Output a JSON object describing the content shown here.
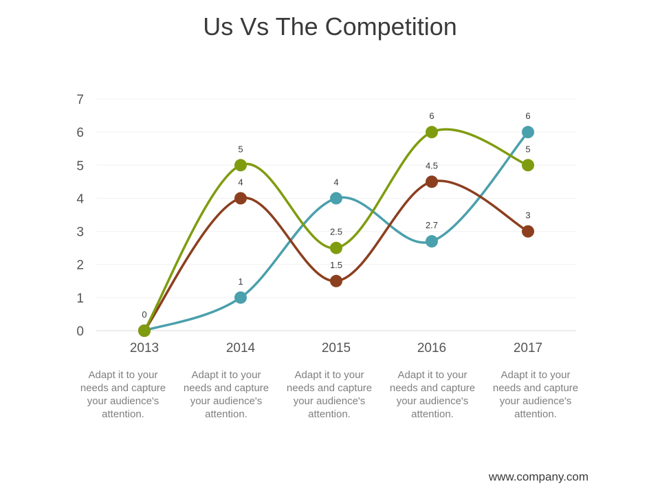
{
  "title": "Us Vs The Competition",
  "footer": "www.company.com",
  "captions": [
    "Adapt it to your needs and capture your audience's attention.",
    "Adapt it to your needs and capture your audience's attention.",
    "Adapt it to your needs and capture your audience's attention.",
    "Adapt it to your needs and capture your audience's attention.",
    "Adapt it to your needs and capture your audience's attention."
  ],
  "chart_data": {
    "type": "line",
    "title": "Us Vs The Competition",
    "xlabel": "",
    "ylabel": "",
    "categories": [
      "2013",
      "2014",
      "2015",
      "2016",
      "2017"
    ],
    "ylim": [
      0,
      7
    ],
    "yticks": [
      0,
      1,
      2,
      3,
      4,
      5,
      6,
      7
    ],
    "grid": true,
    "smooth": true,
    "series": [
      {
        "color": "#7f9c0f",
        "values": [
          0,
          5,
          2.5,
          6,
          5
        ],
        "labels": [
          "0",
          "5",
          "2.5",
          "6",
          "5"
        ]
      },
      {
        "color": "#8b3f1f",
        "values": [
          0,
          4,
          1.5,
          4.5,
          3
        ],
        "labels": [
          "0",
          "4",
          "1.5",
          "4.5",
          "3"
        ]
      },
      {
        "color": "#4aa0ac",
        "values": [
          0,
          1,
          4,
          2.7,
          6
        ],
        "labels": [
          "0",
          "1",
          "4",
          "2.7",
          "6"
        ]
      }
    ]
  }
}
